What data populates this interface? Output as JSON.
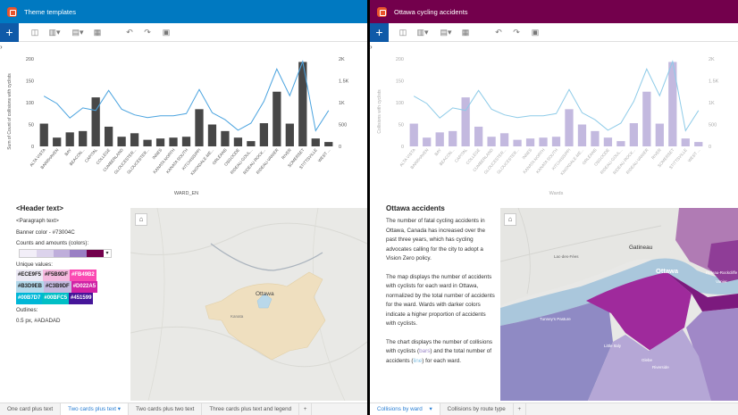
{
  "left": {
    "banner": {
      "title": "Theme templates",
      "color": "#0079c1"
    },
    "chart": {
      "y_axis_label": "Sum of Count of collisions with cyclists",
      "x_axis_label": "WARD_EN"
    },
    "text_card": {
      "header": "<Header text>",
      "paragraph": "<Paragraph text>",
      "banner_color": "Banner color - #73004C",
      "counts_label": "Counts and amounts (colors):",
      "unique_label": "Unique values:",
      "swatches": [
        "#ECE9F5",
        "#F5B9DF",
        "#FB49B2",
        "#B3D9EB",
        "#C3B9DF",
        "#D022A5",
        "#00B7D7",
        "#00BFC5",
        "#451599"
      ],
      "outlines_label": "Outlines:",
      "outlines_value": "0.5 px, #ADADAD"
    },
    "map": {
      "city_label": "Ottawa",
      "sub_label": "Kanata"
    },
    "tabs": [
      "One card plus text",
      "Two cards plus text",
      "Two cards plus two text",
      "Three cards plus text and legend"
    ],
    "active_tab": 1
  },
  "right": {
    "banner": {
      "title": "Ottawa cycling accidents",
      "color": "#73004c"
    },
    "chart": {
      "y_axis_label": "Collisions with cyclists",
      "x_axis_label": "Wards"
    },
    "text_card": {
      "header": "Ottawa accidents",
      "para1": "The number of fatal cycling accidents in Ottawa, Canada has increased over the past three years, which has cycling advocates calling for the city to adopt a Vision Zero policy.",
      "para2": "The map displays the number of accidents with cyclists for each ward in Ottawa, normalized by the total number of accidents for the ward. Wards with darker colors indicate a higher proportion of accidents with cyclists.",
      "para3_a": "The chart displays the number of collisions with cyclists (",
      "para3_bars": "bars",
      "para3_b": ") and the total number of accidents (",
      "para3_line": "line",
      "para3_c": ") for each ward."
    },
    "map": {
      "labels": [
        "Lac-des-Fées",
        "Gatineau",
        "Ottawa",
        "Vanier",
        "Rideau-Rockcliffe",
        "Tunney's Pasture",
        "Little Italy",
        "Riverside",
        "Glebe"
      ]
    },
    "tabs": [
      "Collisions by ward",
      "Collisions by route type"
    ],
    "active_tab": 0
  },
  "chart_data": [
    {
      "type": "bar",
      "title": "",
      "xlabel": "WARD_EN",
      "ylabel": "Sum of Count of collisions with cyclists",
      "ylim": [
        0,
        200
      ],
      "y2lim": [
        0,
        2000
      ],
      "y_ticks": [
        "0",
        "50",
        "100",
        "150",
        "200"
      ],
      "y2_ticks": [
        "0",
        "500",
        "1K",
        "1.5K",
        "2K"
      ],
      "categories": [
        "ALTA VISTA",
        "BARRHAVEN",
        "BAY",
        "BEACON...",
        "CAPITAL",
        "COLLEGE",
        "CUMBERLAND",
        "GLOUCESTER...",
        "GLOUCESTER...",
        "INNES",
        "KANATA NORTH",
        "KANATA SOUTH",
        "KITCHISSIPPI",
        "KNOXDALE-ME...",
        "ORLÉANS",
        "OSGOODE",
        "RIDEAU-GOUL...",
        "RIDEAU-ROCK...",
        "RIDEAU-VANIER",
        "RIVER",
        "SOMERSET",
        "STITTSVILLE",
        "WEST ..."
      ],
      "series": [
        {
          "name": "Sum of Count of collisions with cyclists",
          "kind": "bar",
          "axis": "left",
          "values": [
            52,
            20,
            32,
            35,
            112,
            45,
            22,
            30,
            15,
            18,
            20,
            22,
            85,
            50,
            35,
            20,
            12,
            53,
            125,
            52,
            193,
            18,
            10
          ]
        },
        {
          "name": "Total accidents",
          "kind": "line",
          "axis": "right",
          "values": [
            1150,
            980,
            650,
            880,
            820,
            1280,
            850,
            720,
            660,
            700,
            700,
            750,
            1300,
            770,
            610,
            370,
            530,
            1030,
            1770,
            1160,
            1940,
            360,
            820
          ]
        }
      ],
      "colors": {
        "bar": "#474747",
        "line": "#4aa3df"
      }
    },
    {
      "type": "bar",
      "title": "",
      "xlabel": "Wards",
      "ylabel": "Collisions with cyclists",
      "ylim": [
        0,
        200
      ],
      "y2lim": [
        0,
        2000
      ],
      "y_ticks": [
        "0",
        "50",
        "100",
        "150",
        "200"
      ],
      "y2_ticks": [
        "0",
        "500",
        "1K",
        "1.5K",
        "2K"
      ],
      "categories": [
        "ALTA VISTA",
        "BARRHAVEN",
        "BAY",
        "BEACON...",
        "CAPITAL",
        "COLLEGE",
        "CUMBERLAND",
        "GLOUCESTER...",
        "GLOUCESTER...",
        "INNES",
        "KANATA NORTH",
        "KANATA SOUTH",
        "KITCHISSIPPI",
        "KNOXDALE-ME...",
        "ORLÉANS",
        "OSGOODE",
        "RIDEAU-GOUL...",
        "RIDEAU-ROCK...",
        "RIDEAU-VANIER",
        "RIVER",
        "SOMERSET",
        "STITTSVILLE",
        "WEST ..."
      ],
      "series": [
        {
          "name": "Collisions with cyclists",
          "kind": "bar",
          "axis": "left",
          "values": [
            52,
            20,
            32,
            35,
            112,
            45,
            22,
            30,
            15,
            18,
            20,
            22,
            85,
            50,
            35,
            20,
            12,
            53,
            125,
            52,
            193,
            18,
            10
          ]
        },
        {
          "name": "Total accidents",
          "kind": "line",
          "axis": "right",
          "values": [
            1150,
            980,
            650,
            880,
            820,
            1280,
            850,
            720,
            660,
            700,
            700,
            750,
            1300,
            770,
            610,
            370,
            530,
            1030,
            1770,
            1160,
            1940,
            360,
            820
          ]
        }
      ],
      "colors": {
        "bar": "#c3b9df",
        "line": "#8ecbe8"
      }
    }
  ]
}
